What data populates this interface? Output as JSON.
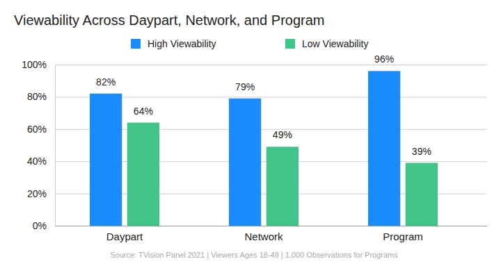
{
  "chart_data": {
    "type": "bar",
    "title": "Viewability Across Daypart, Network, and Program",
    "categories": [
      "Daypart",
      "Network",
      "Program"
    ],
    "series": [
      {
        "name": "High Viewability",
        "color": "#1a8cff",
        "values": [
          82,
          79,
          96
        ],
        "value_labels": [
          "82%",
          "79%",
          "96%"
        ]
      },
      {
        "name": "Low Viewability",
        "color": "#40c487",
        "values": [
          64,
          49,
          39
        ],
        "value_labels": [
          "64%",
          "49%",
          "39%"
        ]
      }
    ],
    "ylim": [
      0,
      100
    ],
    "yticks": [
      {
        "value": 0,
        "label": "0%"
      },
      {
        "value": 20,
        "label": "20%"
      },
      {
        "value": 40,
        "label": "40%"
      },
      {
        "value": 60,
        "label": "60%"
      },
      {
        "value": 80,
        "label": "80%"
      },
      {
        "value": 100,
        "label": "100%"
      }
    ],
    "grid": true,
    "legend": "top",
    "data_labels": true,
    "annotations": [
      "Source: TVision Panel 2021 | Viewers Ages 18-49 | 1,000 Observations for Programs"
    ]
  }
}
